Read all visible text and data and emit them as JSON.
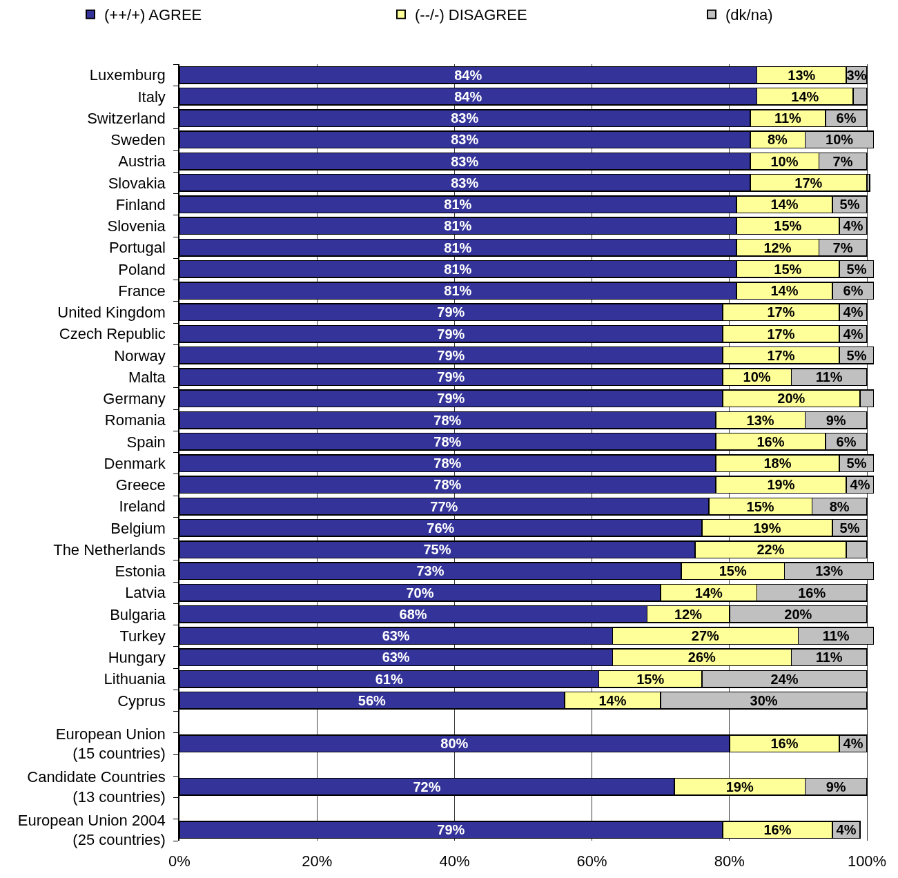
{
  "chart_data": {
    "type": "bar",
    "orientation": "horizontal",
    "stacked": true,
    "legend": "top",
    "grid": "x",
    "categories": [
      "Luxemburg",
      "Italy",
      "Switzerland",
      "Sweden",
      "Austria",
      "Slovakia",
      "Finland",
      "Slovenia",
      "Portugal",
      "Poland",
      "France",
      "United Kingdom",
      "Czech Republic",
      "Norway",
      "Malta",
      "Germany",
      "Romania",
      "Spain",
      "Denmark",
      "Greece",
      "Ireland",
      "Belgium",
      "The Netherlands",
      "Estonia",
      "Latvia",
      "Bulgaria",
      "Turkey",
      "Hungary",
      "Lithuania",
      "Cyprus",
      null,
      "European Union\n(15 countries)",
      null,
      "Candidate Countries\n(13 countries)",
      null,
      "European Union 2004\n(25 countries)"
    ],
    "xlim": [
      0,
      101
    ],
    "xticks": [
      {
        "value": 0,
        "label": "0%"
      },
      {
        "value": 20,
        "label": "20%"
      },
      {
        "value": 40,
        "label": "40%"
      },
      {
        "value": 60,
        "label": "60%"
      },
      {
        "value": 80,
        "label": "80%"
      },
      {
        "value": 100,
        "label": "100%"
      }
    ],
    "series": [
      {
        "name": "(++/+) AGREE",
        "color": "#333399",
        "values": [
          84,
          84,
          83,
          83,
          83,
          83,
          81,
          81,
          81,
          81,
          81,
          79,
          79,
          79,
          79,
          79,
          78,
          78,
          78,
          78,
          77,
          76,
          75,
          73,
          70,
          68,
          63,
          63,
          61,
          56,
          null,
          80,
          null,
          72,
          null,
          79
        ],
        "value_labels": [
          "84%",
          "84%",
          "83%",
          "83%",
          "83%",
          "83%",
          "81%",
          "81%",
          "81%",
          "81%",
          "81%",
          "79%",
          "79%",
          "79%",
          "79%",
          "79%",
          "78%",
          "78%",
          "78%",
          "78%",
          "77%",
          "76%",
          "75%",
          "73%",
          "70%",
          "68%",
          "63%",
          "63%",
          "61%",
          "56%",
          null,
          "80%",
          null,
          "72%",
          null,
          "79%"
        ]
      },
      {
        "name": "(--/-) DISAGREE",
        "color": "#ffff99",
        "values": [
          13,
          14,
          11,
          8,
          10,
          17,
          14,
          15,
          12,
          15,
          14,
          17,
          17,
          17,
          10,
          20,
          13,
          16,
          18,
          19,
          15,
          19,
          22,
          15,
          14,
          12,
          27,
          26,
          15,
          14,
          null,
          16,
          null,
          19,
          null,
          16
        ],
        "value_labels": [
          "13%",
          "14%",
          "11%",
          "8%",
          "10%",
          "17%",
          "14%",
          "15%",
          "12%",
          "15%",
          "14%",
          "17%",
          "17%",
          "17%",
          "10%",
          "20%",
          "13%",
          "16%",
          "18%",
          "19%",
          "15%",
          "19%",
          "22%",
          "15%",
          "14%",
          "12%",
          "27%",
          "26%",
          "15%",
          "14%",
          null,
          "16%",
          null,
          "19%",
          null,
          "16%"
        ]
      },
      {
        "name": "(dk/na)",
        "color": "#c0c0c0",
        "values": [
          3,
          2,
          6,
          10,
          7,
          0.4,
          5,
          4,
          7,
          5,
          6,
          4,
          4,
          5,
          11,
          2,
          9,
          6,
          5,
          4,
          8,
          5,
          3,
          13,
          16,
          20,
          11,
          11,
          24,
          30,
          null,
          4,
          null,
          9,
          null,
          4
        ],
        "value_labels": [
          "3%",
          null,
          "6%",
          "10%",
          "7%",
          null,
          "5%",
          "4%",
          "7%",
          "5%",
          "6%",
          "4%",
          "4%",
          "5%",
          "11%",
          null,
          "9%",
          "6%",
          "5%",
          "4%",
          "8%",
          "5%",
          null,
          "13%",
          "16%",
          "20%",
          "11%",
          "11%",
          "24%",
          "30%",
          null,
          "4%",
          null,
          "9%",
          null,
          "4%"
        ]
      }
    ]
  }
}
